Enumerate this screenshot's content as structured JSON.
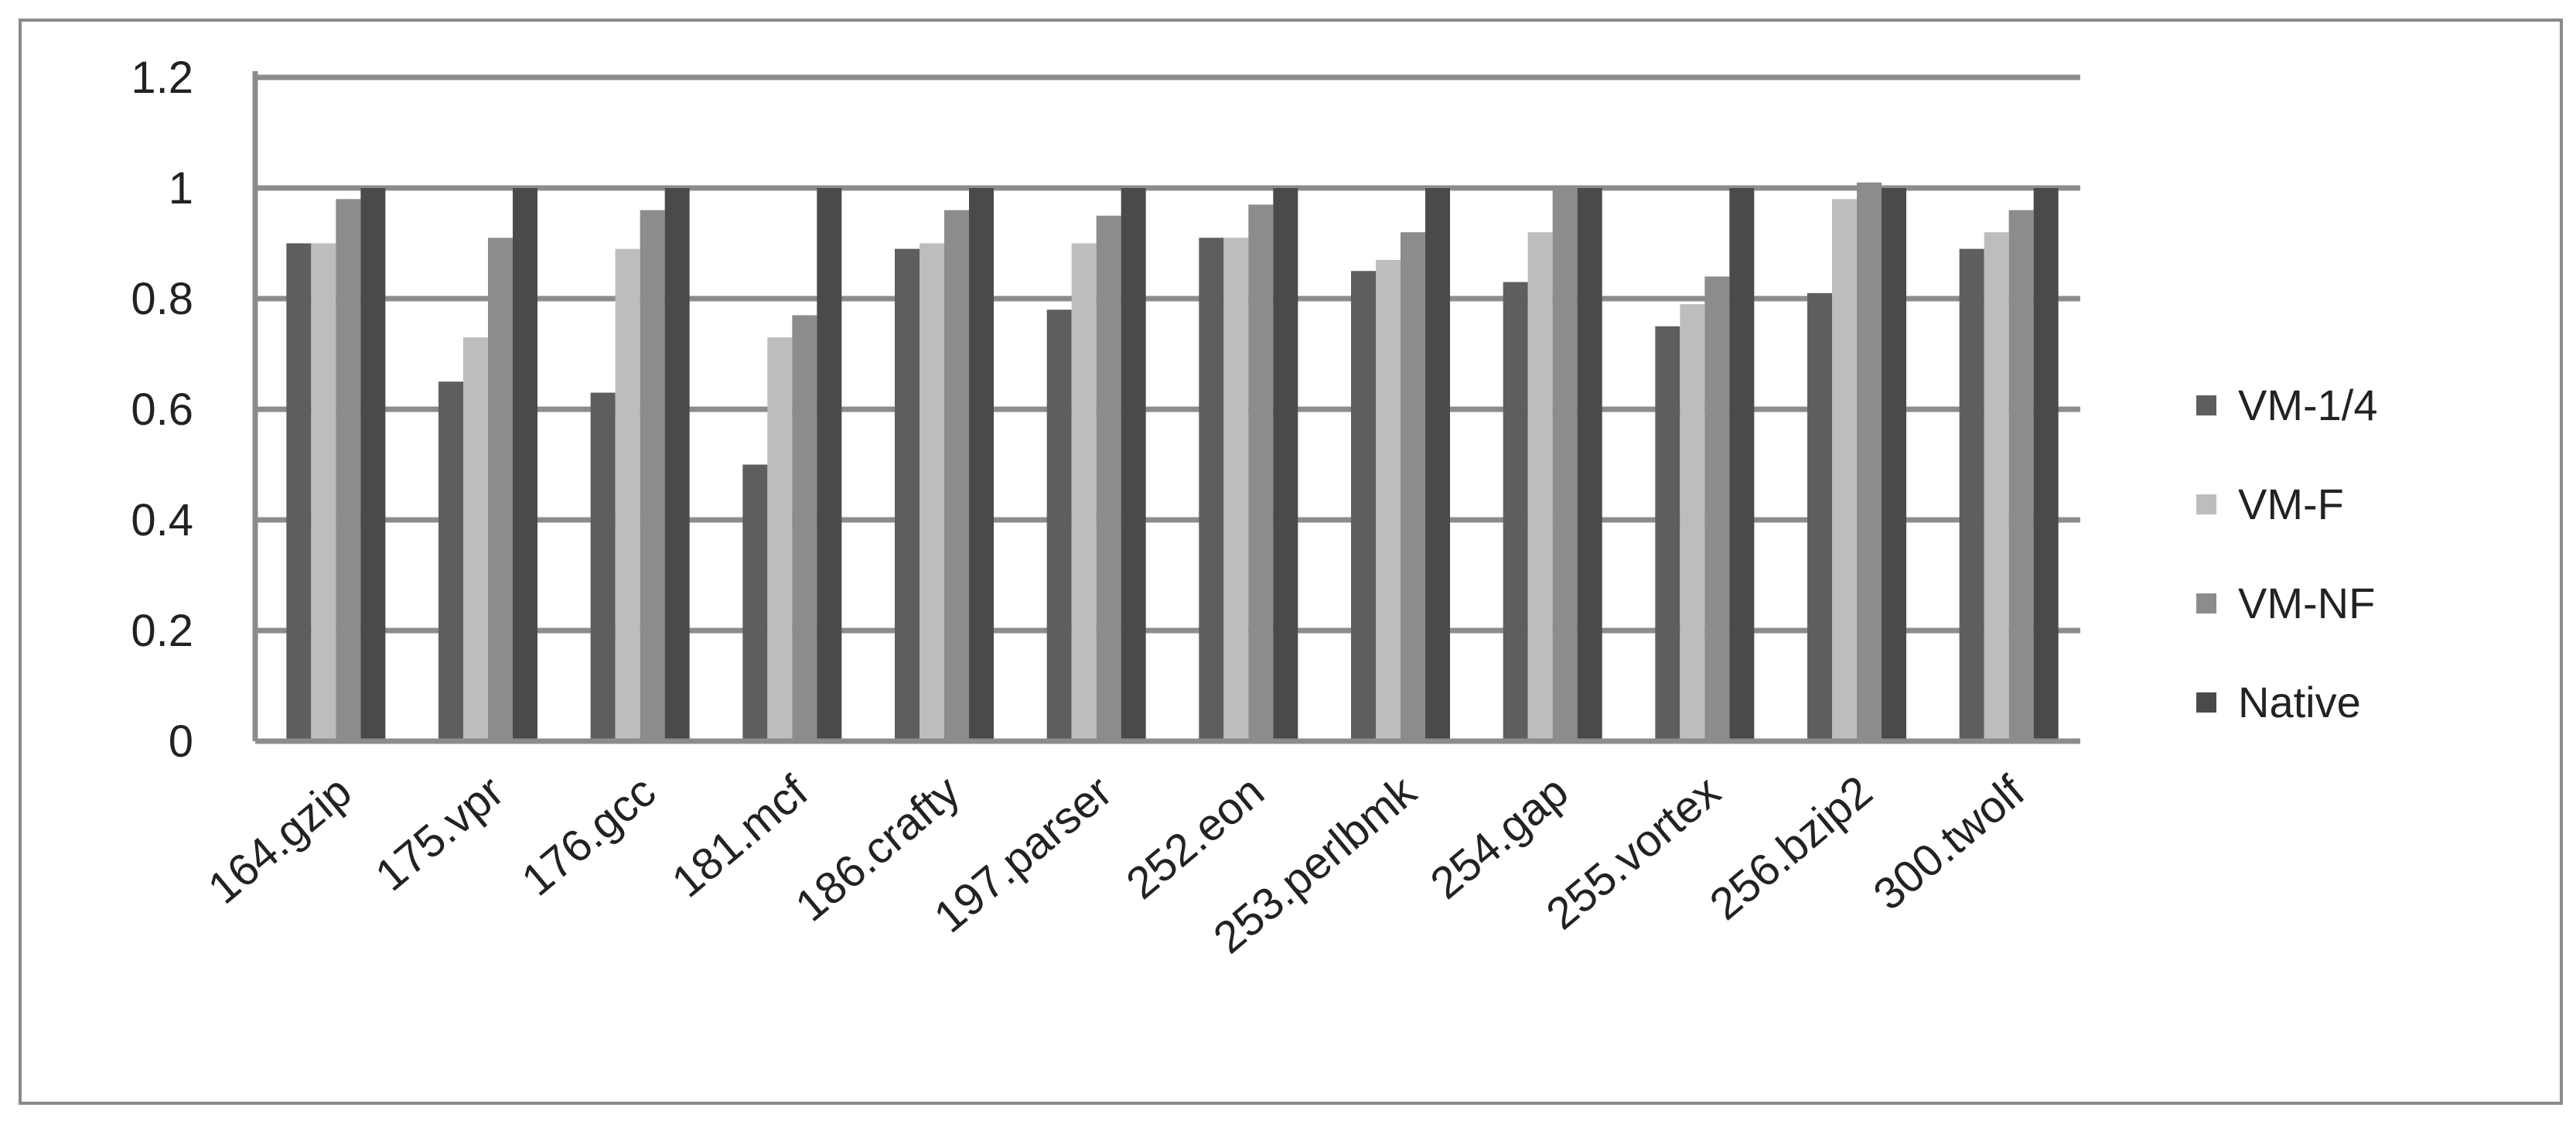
{
  "chart_data": {
    "type": "bar",
    "title": "",
    "xlabel": "",
    "ylabel": "",
    "ylim": [
      0,
      1.2
    ],
    "yticks": [
      0,
      0.2,
      0.4,
      0.6,
      0.8,
      1,
      1.2
    ],
    "ytick_labels": [
      "0",
      "0.2",
      "0.4",
      "0.6",
      "0.8",
      "1",
      "1.2"
    ],
    "grid": true,
    "legend_position": "right",
    "categories": [
      "164.gzip",
      "175.vpr",
      "176.gcc",
      "181.mcf",
      "186.crafty",
      "197.parser",
      "252.eon",
      "253.perlbmk",
      "254.gap",
      "255.vortex",
      "256.bzip2",
      "300.twolf"
    ],
    "series": [
      {
        "name": "VM-1/4",
        "color": "#5e5e5e",
        "values": [
          0.9,
          0.65,
          0.63,
          0.5,
          0.89,
          0.78,
          0.91,
          0.85,
          0.83,
          0.75,
          0.81,
          0.89
        ]
      },
      {
        "name": "VM-F",
        "color": "#bdbdbd",
        "values": [
          0.9,
          0.73,
          0.89,
          0.73,
          0.9,
          0.9,
          0.91,
          0.87,
          0.92,
          0.79,
          0.98,
          0.92
        ]
      },
      {
        "name": "VM-NF",
        "color": "#8c8c8c",
        "values": [
          0.98,
          0.91,
          0.96,
          0.77,
          0.96,
          0.95,
          0.97,
          0.92,
          1.0,
          0.84,
          1.01,
          0.96
        ]
      },
      {
        "name": "Native",
        "color": "#4a4a4a",
        "values": [
          1.0,
          1.0,
          1.0,
          1.0,
          1.0,
          1.0,
          1.0,
          1.0,
          1.0,
          1.0,
          1.0,
          1.0
        ]
      }
    ]
  }
}
